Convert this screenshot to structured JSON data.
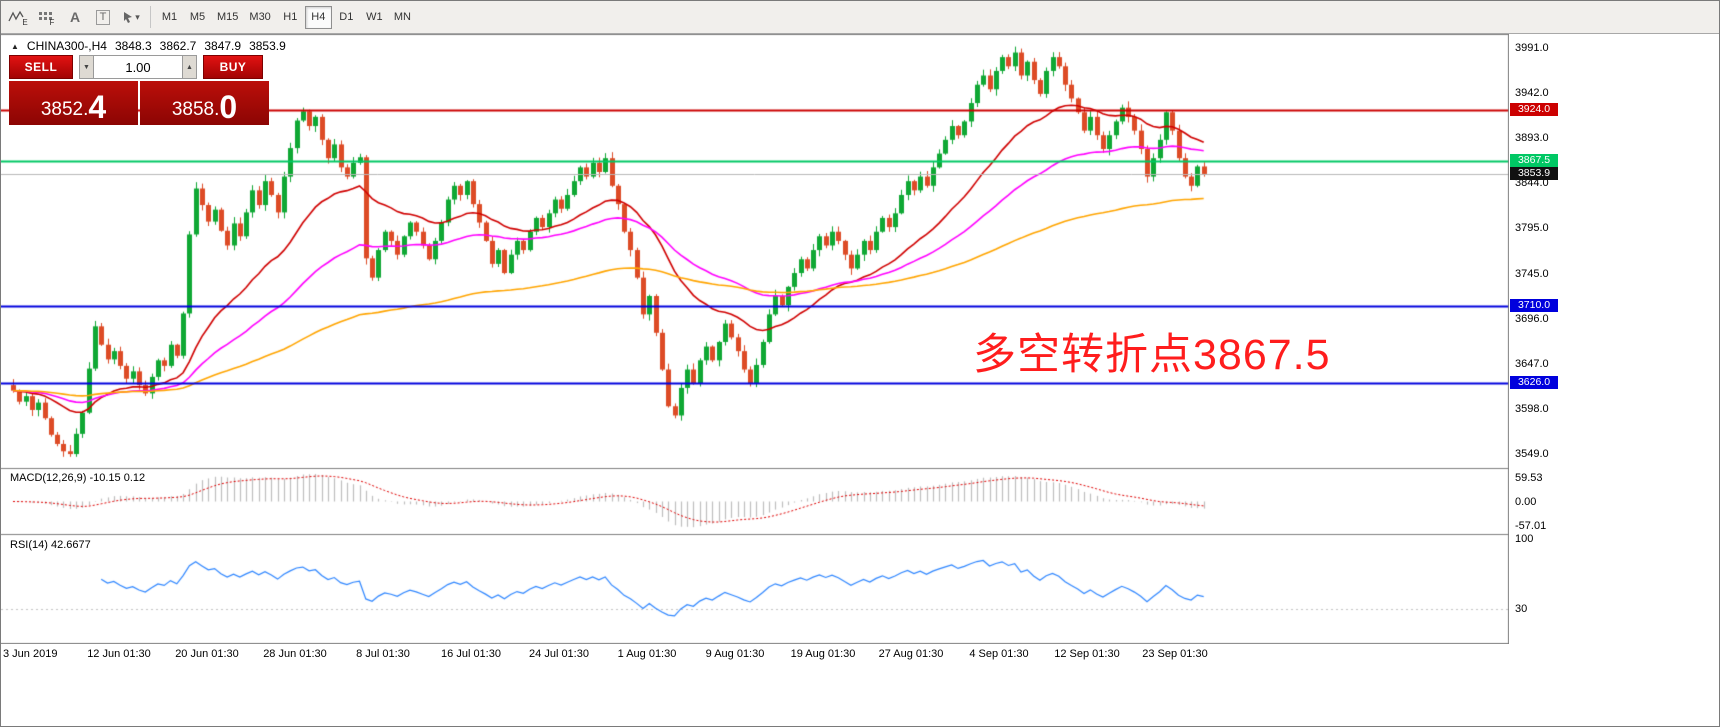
{
  "toolbar": {
    "icons": [
      {
        "name": "line-study-icon",
        "letter": "E"
      },
      {
        "name": "grid-objects-icon",
        "letter": "F"
      },
      {
        "name": "text-label-icon",
        "letter": "A"
      },
      {
        "name": "text-frame-icon",
        "letter": "T"
      },
      {
        "name": "cursor-style-dropdown-icon",
        "letter": ""
      }
    ],
    "timeframes": [
      "M1",
      "M5",
      "M15",
      "M30",
      "H1",
      "H4",
      "D1",
      "W1",
      "MN"
    ],
    "active_timeframe": "H4"
  },
  "chart": {
    "header": {
      "symbol_period": "CHINA300-,H4",
      "open": "3848.3",
      "high": "3862.7",
      "low": "3847.9",
      "close": "3853.9"
    },
    "trade_panel": {
      "sell_label": "SELL",
      "buy_label": "BUY",
      "volume": "1.00",
      "sell_price": {
        "small": "3852.",
        "big": "4"
      },
      "buy_price": {
        "small": "3858.",
        "big": "0"
      }
    },
    "annotation": {
      "text": "多空转折点3867.5",
      "color": "#ff1d1d"
    }
  },
  "indicators": {
    "macd": {
      "label": "MACD(12,26,9) -10.15 0.12",
      "axis_labels": [
        "59.53",
        "0.00",
        "-57.01"
      ],
      "histogram_color": "#bdbdbd",
      "signal_color": "#e00000"
    },
    "rsi": {
      "label": "RSI(14) 42.6677",
      "axis_labels": [
        "100",
        "30"
      ],
      "line_color": "#2e86ff",
      "levels": [
        30
      ]
    }
  },
  "chart_data": {
    "type": "candlestick",
    "symbol": "CHINA300-",
    "timeframe": "H4",
    "current_ohlc": {
      "open": 3848.3,
      "high": 3862.7,
      "low": 3847.9,
      "close": 3853.9
    },
    "y_range": [
      3536,
      4004
    ],
    "bull_color": "#0fa834",
    "bear_color": "#dd4b26",
    "y_tick_labels": [
      "3991.0",
      "3942.0",
      "3893.0",
      "3844.0",
      "3795.0",
      "3745.0",
      "3696.0",
      "3647.0",
      "3598.0",
      "3549.0"
    ],
    "x_tick_labels": [
      "3 Jun 2019",
      "12 Jun 01:30",
      "20 Jun 01:30",
      "28 Jun 01:30",
      "8 Jul 01:30",
      "16 Jul 01:30",
      "24 Jul 01:30",
      "1 Aug 01:30",
      "9 Aug 01:30",
      "19 Aug 01:30",
      "27 Aug 01:30",
      "4 Sep 01:30",
      "12 Sep 01:30",
      "23 Sep 01:30"
    ],
    "levels": [
      {
        "label": "3924.0",
        "value": 3924.0,
        "color": "#cc0000",
        "width": 2
      },
      {
        "label": "3867.5",
        "value": 3867.5,
        "color": "#00c864",
        "width": 2
      },
      {
        "label": "3853.9",
        "value": 3853.9,
        "color": "#111111",
        "line_color": "#b8b8b8",
        "width": 1
      },
      {
        "label": "3710.0",
        "value": 3710.0,
        "color": "#0000dd",
        "width": 2
      },
      {
        "label": "3626.0",
        "value": 3626.0,
        "color": "#0000dd",
        "width": 2
      }
    ],
    "ma_lines": [
      {
        "name": "ma-red",
        "color": "#d00000"
      },
      {
        "name": "ma-magenta",
        "color": "#ff00ff"
      },
      {
        "name": "ma-orange",
        "color": "#ffa500"
      }
    ],
    "closes": [
      3618,
      3606,
      3612,
      3597,
      3605,
      3588,
      3570,
      3560,
      3552,
      3549,
      3571,
      3594,
      3642,
      3688,
      3668,
      3652,
      3661,
      3645,
      3631,
      3639,
      3624,
      3615,
      3633,
      3651,
      3645,
      3668,
      3656,
      3702,
      3788,
      3838,
      3820,
      3802,
      3815,
      3792,
      3776,
      3800,
      3786,
      3812,
      3836,
      3820,
      3846,
      3831,
      3812,
      3851,
      3882,
      3912,
      3922,
      3906,
      3916,
      3891,
      3871,
      3886,
      3861,
      3851,
      3866,
      3872,
      3762,
      3741,
      3771,
      3791,
      3781,
      3766,
      3786,
      3801,
      3791,
      3776,
      3761,
      3781,
      3801,
      3826,
      3841,
      3831,
      3846,
      3821,
      3801,
      3781,
      3756,
      3771,
      3746,
      3766,
      3781,
      3771,
      3791,
      3806,
      3796,
      3811,
      3826,
      3816,
      3831,
      3846,
      3861,
      3851,
      3866,
      3856,
      3871,
      3841,
      3821,
      3791,
      3771,
      3741,
      3701,
      3721,
      3681,
      3641,
      3601,
      3591,
      3621,
      3641,
      3626,
      3651,
      3666,
      3651,
      3671,
      3691,
      3676,
      3661,
      3641,
      3626,
      3646,
      3671,
      3701,
      3721,
      3711,
      3731,
      3746,
      3761,
      3751,
      3771,
      3786,
      3776,
      3791,
      3781,
      3766,
      3751,
      3766,
      3781,
      3771,
      3791,
      3806,
      3796,
      3811,
      3831,
      3846,
      3836,
      3851,
      3841,
      3861,
      3876,
      3891,
      3906,
      3896,
      3911,
      3931,
      3951,
      3961,
      3946,
      3966,
      3981,
      3971,
      3986,
      3961,
      3976,
      3956,
      3941,
      3966,
      3981,
      3971,
      3951,
      3936,
      3921,
      3901,
      3916,
      3896,
      3881,
      3896,
      3911,
      3926,
      3916,
      3901,
      3881,
      3851,
      3871,
      3891,
      3921,
      3901,
      3871,
      3851,
      3841,
      3862,
      3853.9
    ]
  }
}
